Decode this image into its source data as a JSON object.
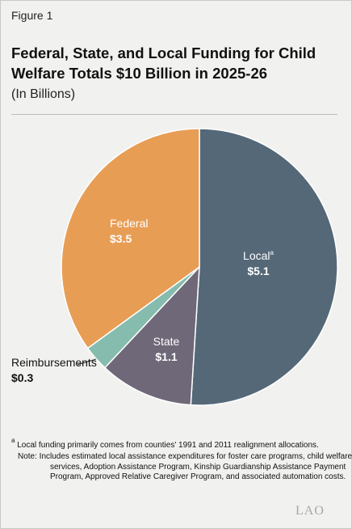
{
  "figure_label": "Figure 1",
  "chart_data": {
    "type": "pie",
    "title": "Federal, State, and Local Funding for Child Welfare Totals $10 Billion in 2025-26",
    "subtitle": "(In Billions)",
    "slices": [
      {
        "name": "Local",
        "value": 5.1,
        "display": "$5.1",
        "color": "#546878",
        "superscript": "a"
      },
      {
        "name": "State",
        "value": 1.1,
        "display": "$1.1",
        "color": "#6f6878"
      },
      {
        "name": "Reimbursements",
        "value": 0.3,
        "display": "$0.3",
        "color": "#86bcae"
      },
      {
        "name": "Federal",
        "value": 3.5,
        "display": "$3.5",
        "color": "#e89d55"
      }
    ]
  },
  "footnote": {
    "marker": "a",
    "text": "Local funding primarily comes from counties' 1991 and 2011 realignment allocations."
  },
  "note": "Note: Includes estimated local assistance expenditures for foster care programs, child welfare services, Adoption Assistance Program, Kinship Guardianship Assistance Payment Program, Approved Relative Caregiver Program, and associated automation costs.",
  "logo_text": "LAO"
}
